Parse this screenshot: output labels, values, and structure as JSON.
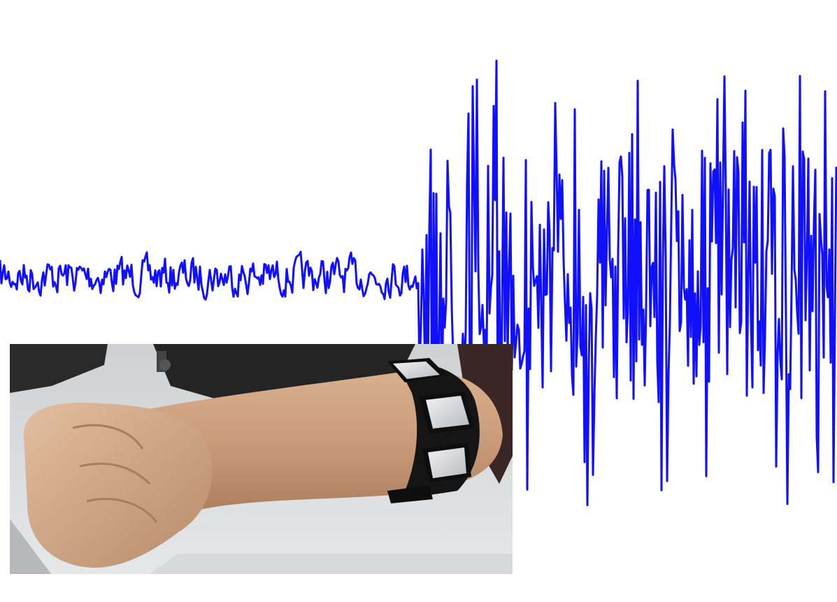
{
  "figure": {
    "signal_color": "#1010ff",
    "background_color": "#ffffff",
    "photo_description_icon": "forearm-with-armband-photo"
  },
  "signal": {
    "quiet_amplitude": 0.12,
    "active_amplitude": 1.0,
    "transition_fraction": 0.5
  }
}
